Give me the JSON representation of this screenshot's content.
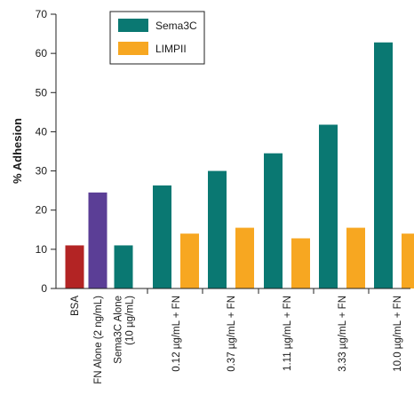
{
  "chart_data": {
    "type": "bar",
    "title": "",
    "xlabel": "",
    "ylabel": "% Adhesion",
    "ylim": [
      0,
      70
    ],
    "yticks": [
      0,
      10,
      20,
      30,
      40,
      50,
      60,
      70
    ],
    "grid": false,
    "legend_position": "top-left",
    "legend": [
      {
        "name": "Sema3C",
        "color": "#0a7872"
      },
      {
        "name": "LIMPII",
        "color": "#f7a721"
      }
    ],
    "categories": [
      "BSA",
      "FN Alone (2 ng/mL)",
      "Sema3C Alone (10 µg/mL)",
      "0.12 µg/mL + FN",
      "0.37 µg/mL + FN",
      "1.11 µg/mL + FN",
      "3.33 µg/mL + FN",
      "10.0 µg/mL + FN"
    ],
    "category_lines": [
      [
        "BSA"
      ],
      [
        "FN Alone (2 ng/mL)"
      ],
      [
        "Sema3C Alone",
        "(10 µg/mL)"
      ],
      [
        "0.12 µg/mL + FN"
      ],
      [
        "0.37 µg/mL + FN"
      ],
      [
        "1.11 µg/mL + FN"
      ],
      [
        "3.33 µg/mL + FN"
      ],
      [
        "10.0 µg/mL + FN"
      ]
    ],
    "series": [
      {
        "name": "Sema3C",
        "color": "#0a7872",
        "values": [
          null,
          null,
          11,
          26.3,
          30,
          34.5,
          41.8,
          62.8
        ]
      },
      {
        "name": "LIMPII",
        "color": "#f7a721",
        "values": [
          null,
          null,
          null,
          14,
          15.5,
          12.8,
          15.5,
          14
        ]
      }
    ],
    "controls": [
      {
        "category": "BSA",
        "value": 11,
        "color": "#b32424"
      },
      {
        "category": "FN Alone (2 ng/mL)",
        "value": 24.5,
        "color": "#5b3e96"
      }
    ]
  }
}
